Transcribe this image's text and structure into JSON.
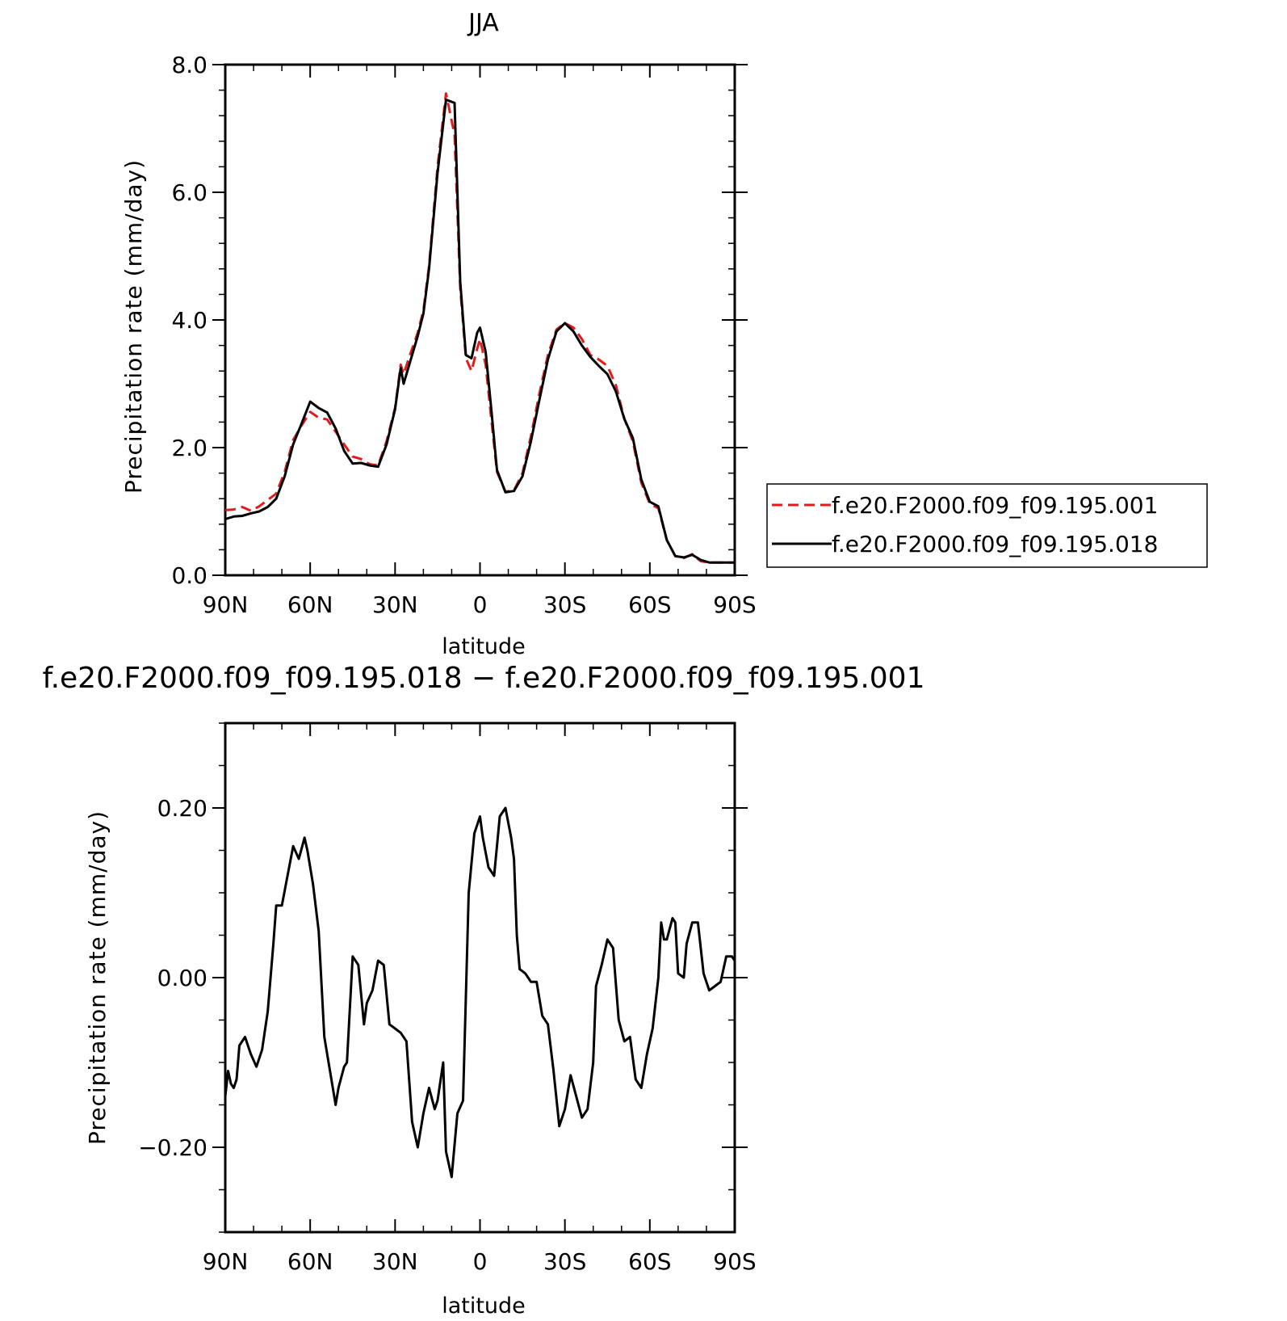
{
  "chart_data": [
    {
      "type": "line",
      "title": "JJA",
      "xlabel": "latitude",
      "ylabel": "Precipitation rate (mm/day)",
      "xlim": [
        90,
        -90
      ],
      "ylim": [
        0,
        8
      ],
      "x_ticks": [
        90,
        60,
        30,
        0,
        -30,
        -60,
        -90
      ],
      "x_tick_labels": [
        "90N",
        "60N",
        "30N",
        "0",
        "30S",
        "60S",
        "90S"
      ],
      "y_ticks": [
        0,
        2,
        4,
        6,
        8
      ],
      "y_tick_labels": [
        "0.0",
        "2.0",
        "4.0",
        "6.0",
        "8.0"
      ],
      "legend": "right",
      "series": [
        {
          "name": "f.e20.F2000.f09_f09.195.001",
          "color": "#e41a1c",
          "style": "dashed",
          "x": [
            90,
            87,
            84,
            81,
            78,
            75,
            72,
            69,
            66,
            63,
            60,
            57,
            54,
            51,
            48,
            45,
            42,
            39,
            36,
            33,
            30,
            28,
            27,
            25,
            22,
            20,
            18,
            15,
            12,
            9,
            7,
            5,
            3,
            1,
            0,
            -2,
            -4,
            -6,
            -9,
            -12,
            -15,
            -18,
            -21,
            -24,
            -27,
            -30,
            -33,
            -36,
            -39,
            -42,
            -45,
            -48,
            -51,
            -54,
            -57,
            -60,
            -63,
            -66,
            -69,
            -72,
            -75,
            -78,
            -81,
            -84,
            -87,
            -90
          ],
          "values": [
            1.02,
            1.03,
            1.07,
            1.01,
            1.08,
            1.18,
            1.28,
            1.62,
            2.12,
            2.35,
            2.56,
            2.47,
            2.44,
            2.25,
            2.05,
            1.86,
            1.82,
            1.74,
            1.72,
            2.1,
            2.62,
            3.3,
            3.15,
            3.42,
            3.8,
            4.15,
            4.85,
            6.4,
            7.55,
            6.9,
            4.5,
            3.4,
            3.2,
            3.55,
            3.7,
            3.3,
            2.45,
            1.62,
            1.31,
            1.33,
            1.6,
            2.18,
            2.85,
            3.45,
            3.85,
            3.95,
            3.88,
            3.7,
            3.45,
            3.38,
            3.28,
            2.98,
            2.45,
            2.1,
            1.45,
            1.12,
            1.05,
            0.55,
            0.3,
            0.27,
            0.33,
            0.22,
            0.2,
            0.2,
            0.2,
            0.2
          ]
        },
        {
          "name": "f.e20.F2000.f09_f09.195.018",
          "color": "#000000",
          "style": "solid",
          "x": [
            90,
            87,
            84,
            81,
            78,
            75,
            72,
            69,
            66,
            63,
            60,
            57,
            54,
            51,
            48,
            45,
            42,
            39,
            36,
            33,
            30,
            28,
            27,
            25,
            22,
            20,
            18,
            15,
            12,
            9,
            7,
            5,
            3,
            1,
            0,
            -2,
            -4,
            -6,
            -9,
            -12,
            -15,
            -18,
            -21,
            -24,
            -27,
            -30,
            -33,
            -36,
            -39,
            -42,
            -45,
            -48,
            -51,
            -54,
            -57,
            -60,
            -63,
            -66,
            -69,
            -72,
            -75,
            -78,
            -81,
            -84,
            -87,
            -90
          ],
          "values": [
            0.88,
            0.92,
            0.93,
            0.97,
            1.0,
            1.07,
            1.2,
            1.55,
            2.05,
            2.38,
            2.72,
            2.62,
            2.55,
            2.3,
            1.95,
            1.75,
            1.76,
            1.72,
            1.7,
            2.05,
            2.6,
            3.25,
            3.0,
            3.3,
            3.75,
            4.1,
            4.8,
            6.3,
            7.45,
            7.4,
            4.6,
            3.45,
            3.4,
            3.8,
            3.88,
            3.5,
            2.6,
            1.65,
            1.3,
            1.32,
            1.55,
            2.1,
            2.75,
            3.38,
            3.82,
            3.95,
            3.82,
            3.6,
            3.42,
            3.28,
            3.15,
            2.88,
            2.45,
            2.15,
            1.5,
            1.15,
            1.08,
            0.55,
            0.3,
            0.28,
            0.32,
            0.24,
            0.2,
            0.2,
            0.2,
            0.2
          ]
        }
      ]
    },
    {
      "type": "line",
      "title": "f.e20.F2000.f09_f09.195.018 − f.e20.F2000.f09_f09.195.001",
      "xlabel": "latitude",
      "ylabel": "Precipitation rate (mm/day)",
      "xlim": [
        90,
        -90
      ],
      "ylim": [
        -0.3,
        0.3
      ],
      "x_ticks": [
        90,
        60,
        30,
        0,
        -30,
        -60,
        -90
      ],
      "x_tick_labels": [
        "90N",
        "60N",
        "30N",
        "0",
        "30S",
        "60S",
        "90S"
      ],
      "y_ticks": [
        -0.2,
        0,
        0.2
      ],
      "y_tick_labels": [
        "−0.20",
        "0.00",
        "0.20"
      ],
      "series": [
        {
          "color": "#000000",
          "style": "solid",
          "x": [
            90,
            89,
            88,
            87,
            86,
            85,
            83,
            81,
            79,
            77,
            75,
            73,
            72,
            70,
            68,
            66,
            64,
            62,
            61,
            60,
            59,
            57,
            55,
            53,
            51,
            50,
            48,
            47,
            45,
            43,
            41,
            40,
            38,
            36,
            34,
            32,
            30,
            28,
            26,
            24,
            22,
            20,
            18,
            16,
            15,
            13,
            12,
            10,
            8,
            6,
            4,
            2,
            0,
            -1,
            -3,
            -5,
            -7,
            -9,
            -11,
            -12,
            -13,
            -14,
            -16,
            -17,
            -18,
            -20,
            -22,
            -24,
            -26,
            -28,
            -30,
            -32,
            -34,
            -36,
            -38,
            -40,
            -41,
            -43,
            -45,
            -47,
            -49,
            -51,
            -53,
            -55,
            -57,
            -59,
            -61,
            -63,
            -64,
            -65,
            -66,
            -68,
            -69,
            -70,
            -72,
            -73,
            -75,
            -77,
            -79,
            -81,
            -83,
            -85,
            -87,
            -89,
            -90
          ],
          "values": [
            -0.14,
            -0.11,
            -0.125,
            -0.13,
            -0.12,
            -0.08,
            -0.07,
            -0.09,
            -0.105,
            -0.085,
            -0.04,
            0.04,
            0.085,
            0.085,
            0.12,
            0.155,
            0.14,
            0.165,
            0.15,
            0.13,
            0.11,
            0.055,
            -0.07,
            -0.11,
            -0.15,
            -0.13,
            -0.105,
            -0.1,
            0.025,
            0.015,
            -0.055,
            -0.03,
            -0.015,
            0.02,
            0.015,
            -0.055,
            -0.06,
            -0.065,
            -0.075,
            -0.17,
            -0.2,
            -0.16,
            -0.13,
            -0.155,
            -0.145,
            -0.1,
            -0.205,
            -0.235,
            -0.16,
            -0.145,
            0.1,
            0.17,
            0.19,
            0.165,
            0.13,
            0.12,
            0.19,
            0.2,
            0.165,
            0.14,
            0.05,
            0.01,
            0.005,
            0.0,
            -0.005,
            -0.005,
            -0.045,
            -0.055,
            -0.11,
            -0.175,
            -0.155,
            -0.115,
            -0.14,
            -0.165,
            -0.155,
            -0.1,
            -0.01,
            0.015,
            0.045,
            0.035,
            -0.05,
            -0.075,
            -0.07,
            -0.12,
            -0.13,
            -0.09,
            -0.06,
            0.0,
            0.065,
            0.045,
            0.045,
            0.07,
            0.065,
            0.005,
            0.0,
            0.04,
            0.065,
            0.065,
            0.005,
            -0.015,
            -0.01,
            -0.005,
            0.025,
            0.025,
            0.02
          ]
        }
      ]
    }
  ]
}
